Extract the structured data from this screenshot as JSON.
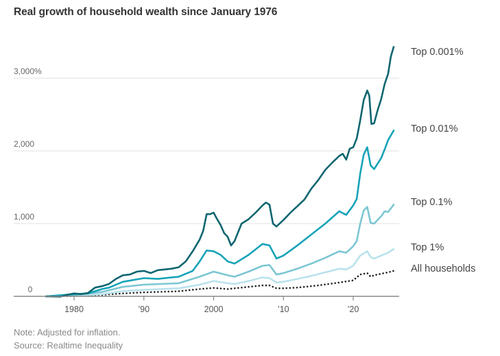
{
  "chart_data": {
    "type": "line",
    "title": "Real growth of household wealth since January 1976",
    "xlabel": "",
    "ylabel": "",
    "xlim": [
      1976,
      2025.8
    ],
    "ylim": [
      0,
      3500
    ],
    "grid": true,
    "legend": "direct labels at right",
    "yticks": [
      {
        "value": 0,
        "label": "0"
      },
      {
        "value": 1000,
        "label": "1,000"
      },
      {
        "value": 2000,
        "label": "2,000"
      },
      {
        "value": 3000,
        "label": "3,000%"
      }
    ],
    "xticks": [
      {
        "value": 1980,
        "label": "1980"
      },
      {
        "value": 1990,
        "label": "'90"
      },
      {
        "value": 2000,
        "label": "2000"
      },
      {
        "value": 2010,
        "label": "'10"
      },
      {
        "value": 2020,
        "label": "'20"
      }
    ],
    "series": [
      {
        "name": "Top 0.001%",
        "color": "#0e6670",
        "style": "solid",
        "x": [
          1976,
          1978,
          1979,
          1980,
          1981,
          1982,
          1983,
          1984,
          1985,
          1986,
          1987,
          1988,
          1989,
          1990,
          1991,
          1992,
          1993,
          1994,
          1995,
          1996,
          1997,
          1998,
          1998.5,
          1999,
          1999.5,
          2000,
          2000.5,
          2001,
          2001.5,
          2002,
          2002.5,
          2003,
          2004,
          2005,
          2006,
          2007,
          2007.5,
          2008,
          2008.5,
          2009,
          2010,
          2011,
          2012,
          2013,
          2014,
          2015,
          2016,
          2017,
          2018,
          2018.5,
          2019,
          2019.5,
          2020,
          2020.5,
          2021,
          2021.5,
          2022,
          2022.3,
          2022.6,
          2023,
          2023.5,
          2024,
          2024.5,
          2025,
          2025.4,
          2025.8
        ],
        "values": [
          0,
          -5,
          20,
          40,
          30,
          45,
          120,
          140,
          170,
          240,
          290,
          300,
          340,
          350,
          320,
          360,
          370,
          380,
          400,
          480,
          620,
          780,
          900,
          1130,
          1130,
          1150,
          1060,
          980,
          870,
          820,
          700,
          760,
          1000,
          1060,
          1150,
          1250,
          1290,
          1260,
          1000,
          960,
          1050,
          1150,
          1240,
          1330,
          1480,
          1600,
          1740,
          1840,
          1930,
          1960,
          1880,
          2030,
          2050,
          2170,
          2420,
          2700,
          2830,
          2760,
          2370,
          2380,
          2560,
          2710,
          2920,
          3060,
          3300,
          3430
        ]
      },
      {
        "name": "Top 0.01%",
        "color": "#16a3b8",
        "style": "solid",
        "x": [
          1976,
          1980,
          1982,
          1984,
          1985,
          1987,
          1990,
          1992,
          1995,
          1997,
          1998,
          1999,
          2000,
          2001,
          2002,
          2003,
          2005,
          2007,
          2008,
          2009,
          2010,
          2012,
          2014,
          2016,
          2018,
          2019,
          2020,
          2020.5,
          2021,
          2021.5,
          2022,
          2022.5,
          2023,
          2024,
          2024.5,
          2025,
          2025.8
        ],
        "values": [
          0,
          30,
          40,
          100,
          120,
          200,
          250,
          240,
          270,
          350,
          480,
          630,
          620,
          570,
          480,
          450,
          570,
          720,
          700,
          520,
          560,
          700,
          850,
          1000,
          1170,
          1120,
          1250,
          1340,
          1690,
          1950,
          2050,
          1800,
          1750,
          1900,
          2020,
          2150,
          2280
        ]
      },
      {
        "name": "Top 0.1%",
        "color": "#7cc6d3",
        "style": "solid",
        "x": [
          1976,
          1980,
          1984,
          1987,
          1990,
          1995,
          1998,
          2000,
          2002,
          2003,
          2005,
          2007,
          2008,
          2009,
          2010,
          2012,
          2014,
          2016,
          2018,
          2019,
          2020,
          2020.5,
          2021,
          2021.5,
          2022,
          2022.5,
          2023,
          2024,
          2024.5,
          2025,
          2025.8
        ],
        "values": [
          0,
          20,
          60,
          130,
          160,
          180,
          270,
          340,
          290,
          270,
          340,
          420,
          430,
          300,
          320,
          380,
          450,
          530,
          620,
          600,
          690,
          760,
          1000,
          1180,
          1230,
          1010,
          1000,
          1100,
          1170,
          1160,
          1260
        ]
      },
      {
        "name": "Top 1%",
        "color": "#b9e2ec",
        "style": "solid",
        "x": [
          1976,
          1980,
          1984,
          1987,
          1990,
          1995,
          1998,
          2000,
          2002,
          2003,
          2005,
          2007,
          2008,
          2009,
          2010,
          2012,
          2014,
          2016,
          2018,
          2019,
          2020,
          2021,
          2022,
          2022.5,
          2023,
          2024,
          2025,
          2025.8
        ],
        "values": [
          0,
          10,
          30,
          70,
          90,
          110,
          160,
          210,
          180,
          170,
          210,
          260,
          250,
          190,
          200,
          240,
          280,
          330,
          380,
          370,
          420,
          560,
          620,
          540,
          520,
          560,
          600,
          650
        ]
      },
      {
        "name": "All households",
        "color": "#222222",
        "style": "dotted",
        "x": [
          1976,
          1980,
          1984,
          1987,
          1990,
          1995,
          1998,
          2000,
          2002,
          2005,
          2007,
          2008,
          2009,
          2010,
          2012,
          2015,
          2018,
          2020,
          2021,
          2022,
          2022.5,
          2023,
          2024,
          2025,
          2025.8
        ],
        "values": [
          0,
          5,
          20,
          40,
          55,
          70,
          100,
          115,
          100,
          130,
          150,
          150,
          110,
          110,
          120,
          150,
          190,
          220,
          300,
          320,
          270,
          290,
          310,
          330,
          350
        ]
      }
    ]
  },
  "notes": {
    "note": "Note: Adjusted for inflation.",
    "source": "Source: Realtime Inequality"
  }
}
